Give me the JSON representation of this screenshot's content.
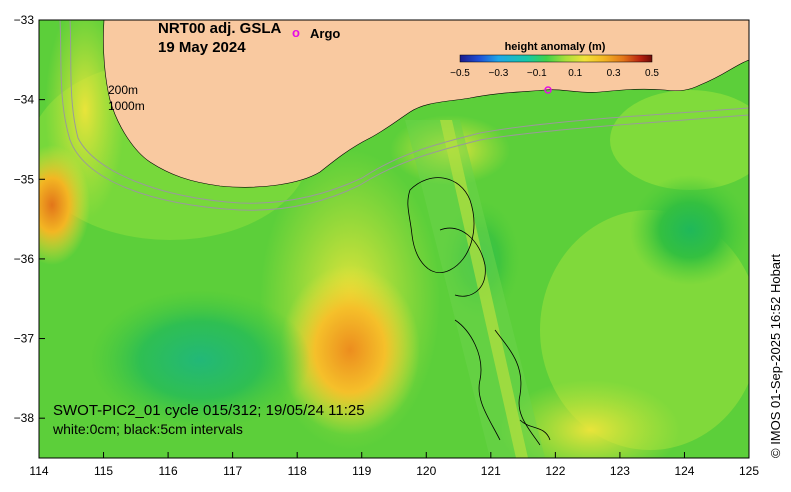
{
  "map": {
    "title_line1": "NRT00 adj. GSLA",
    "title_line2": "19 May 2024",
    "argo_marker": "o",
    "argo_label": "Argo",
    "depth_200": "200m",
    "depth_1000": "1000m",
    "swot_caption": "SWOT-PIC2_01 cycle 015/312; 19/05/24 11:25",
    "contour_caption": "white:0cm; black:5cm intervals",
    "credit": "© IMOS 01-Sep-2025 16:52 Hobart"
  },
  "colorbar": {
    "title": "height anomaly (m)",
    "ticks": [
      "−0.5",
      "−0.3",
      "−0.1",
      "0.1",
      "0.3",
      "0.5"
    ],
    "tick_values": [
      -0.5,
      -0.3,
      -0.1,
      0.1,
      0.3,
      0.5
    ],
    "colors": [
      "#1a1a8c",
      "#1f4fd6",
      "#1fa7e8",
      "#16c9a8",
      "#3fd24a",
      "#a8e03a",
      "#f2e23a",
      "#f3b623",
      "#e2751a",
      "#b8210f",
      "#6e0b08"
    ]
  },
  "axes": {
    "x_ticks": [
      "114",
      "115",
      "116",
      "117",
      "118",
      "119",
      "120",
      "121",
      "122",
      "123",
      "124",
      "125"
    ],
    "x_values": [
      114,
      115,
      116,
      117,
      118,
      119,
      120,
      121,
      122,
      123,
      124,
      125
    ],
    "y_ticks": [
      "−33",
      "−34",
      "−35",
      "−36",
      "−37",
      "−38"
    ],
    "y_values": [
      -33,
      -34,
      -35,
      -36,
      -37,
      -38
    ],
    "xlim": [
      114,
      125
    ],
    "ylim": [
      -38.5,
      -33
    ]
  },
  "colors": {
    "land": "#f9c9a0",
    "ocean_base": "#62d23a",
    "argo": "#e60de6"
  }
}
